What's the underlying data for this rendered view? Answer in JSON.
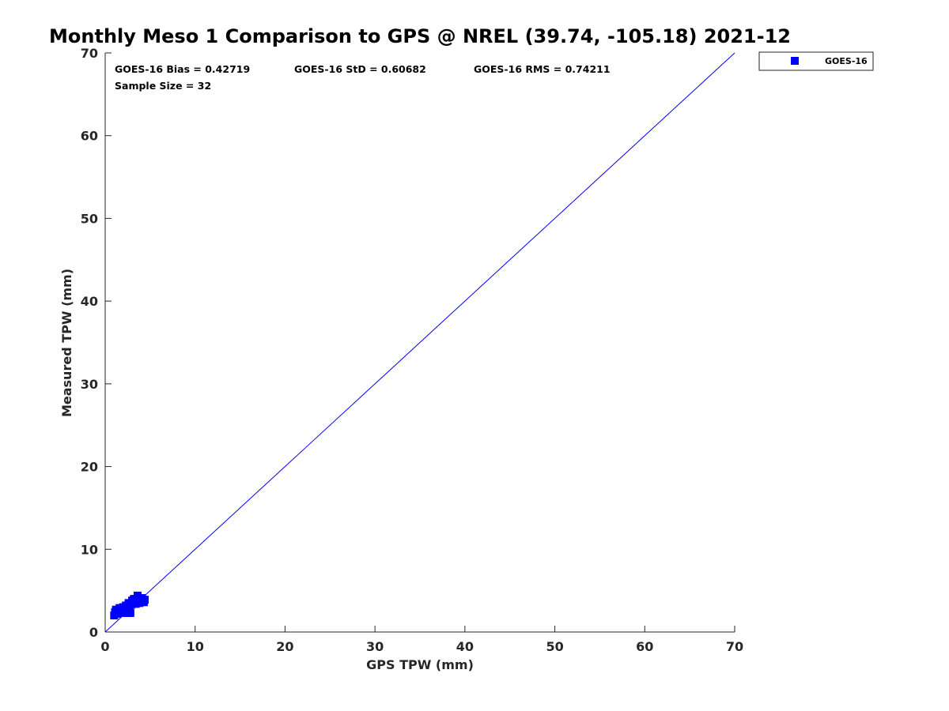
{
  "chart_data": {
    "type": "scatter",
    "title": "Monthly Meso 1 Comparison to GPS @ NREL (39.74, -105.18) 2021-12",
    "xlabel": "GPS TPW (mm)",
    "ylabel": "Measured TPW (mm)",
    "xlim": [
      0,
      70
    ],
    "ylim": [
      0,
      70
    ],
    "xticks": [
      "0",
      "10",
      "20",
      "30",
      "40",
      "50",
      "60",
      "70"
    ],
    "yticks": [
      "0",
      "10",
      "20",
      "30",
      "40",
      "50",
      "60",
      "70"
    ],
    "grid": false,
    "legend_position": "outside-top-right",
    "stats": {
      "bias": "GOES-16 Bias = 0.42719",
      "std": "GOES-16 StD = 0.60682",
      "rms": "GOES-16 RMS = 0.74211",
      "sample_size": "Sample Size = 32"
    },
    "reference_line": {
      "name": "1:1",
      "x": [
        0,
        70
      ],
      "y": [
        0,
        70
      ],
      "color": "#0000ff"
    },
    "series": [
      {
        "name": "GOES-16",
        "marker": "square",
        "color": "#0000ff",
        "points": [
          [
            1.0,
            2.0
          ],
          [
            1.1,
            2.4
          ],
          [
            1.2,
            2.7
          ],
          [
            1.3,
            2.2
          ],
          [
            1.5,
            2.5
          ],
          [
            1.6,
            2.9
          ],
          [
            1.8,
            2.3
          ],
          [
            1.9,
            2.7
          ],
          [
            2.0,
            3.0
          ],
          [
            2.1,
            2.5
          ],
          [
            2.3,
            3.2
          ],
          [
            2.4,
            2.8
          ],
          [
            2.5,
            2.3
          ],
          [
            2.6,
            3.5
          ],
          [
            2.7,
            3.0
          ],
          [
            2.8,
            2.3
          ],
          [
            2.9,
            3.3
          ],
          [
            3.0,
            3.8
          ],
          [
            3.1,
            3.5
          ],
          [
            3.2,
            4.0
          ],
          [
            3.3,
            3.6
          ],
          [
            3.4,
            3.4
          ],
          [
            3.5,
            4.0
          ],
          [
            3.6,
            4.4
          ],
          [
            3.7,
            3.8
          ],
          [
            3.8,
            3.5
          ],
          [
            3.9,
            4.0
          ],
          [
            4.0,
            3.7
          ],
          [
            4.1,
            4.1
          ],
          [
            4.2,
            3.8
          ],
          [
            4.3,
            3.6
          ],
          [
            4.4,
            3.9
          ]
        ]
      }
    ]
  }
}
